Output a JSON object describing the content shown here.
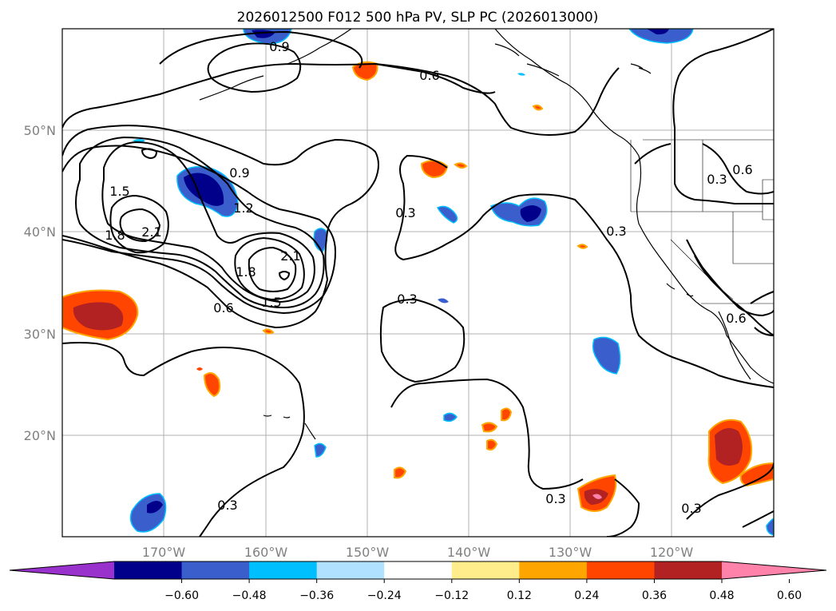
{
  "title": "2026012500 F012 500 hPa PV, SLP PC (2026013000)",
  "map": {
    "lon_labels": [
      "170°W",
      "160°W",
      "150°W",
      "140°W",
      "130°W",
      "120°W"
    ],
    "lat_labels": [
      "50°N",
      "40°N",
      "30°N",
      "20°N"
    ],
    "gridlines": true
  },
  "contour_labels": [
    "0.9",
    "0.6",
    "0.9",
    "1.2",
    "1.5",
    "1.8",
    "2.1",
    "2.1",
    "1.8",
    "1.5",
    "0.6",
    "0.3",
    "0.3",
    "0.6",
    "0.3",
    "0.3",
    "0.3",
    "0.6",
    "0.3",
    "0.3"
  ],
  "colorbar": {
    "ticks": [
      "−0.60",
      "−0.48",
      "−0.36",
      "−0.24",
      "−0.12",
      "0.12",
      "0.24",
      "0.36",
      "0.48",
      "0.60"
    ],
    "colors": [
      "#9932cc",
      "#00008b",
      "#3a5fcd",
      "#00bfff",
      "#b0e2ff",
      "#ffffff",
      "#ffec8b",
      "#ffa500",
      "#ff4500",
      "#b22222",
      "#ff82ab"
    ]
  }
}
